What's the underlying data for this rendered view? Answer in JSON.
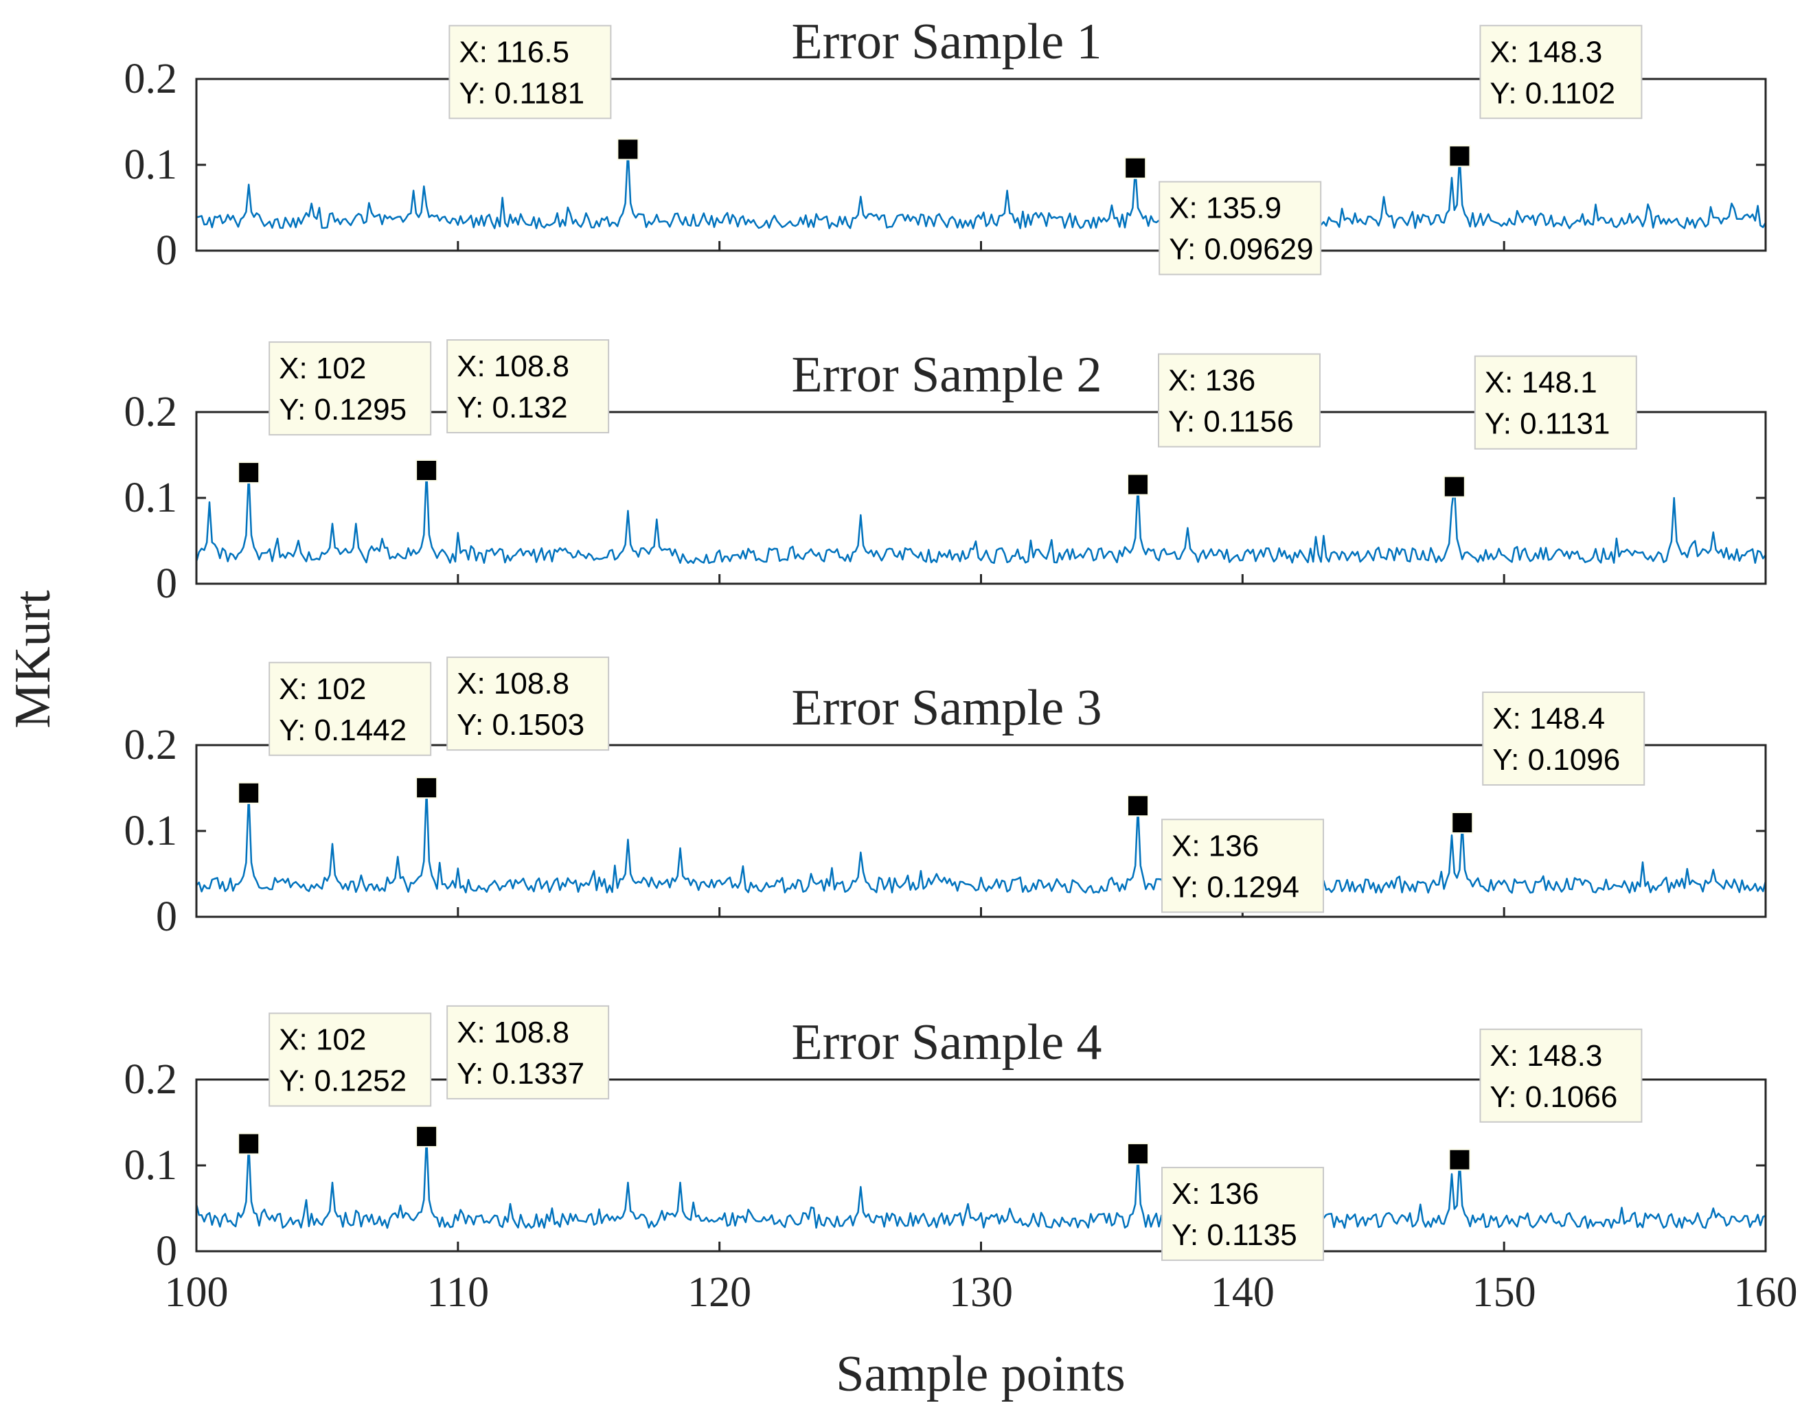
{
  "figure": {
    "ylabel": "MKurt",
    "xlabel": "Sample points",
    "line_color": "#0072bd",
    "marker_color": "#000000",
    "tooltip_fill": "#fcfce8"
  },
  "chart_data": [
    {
      "type": "line",
      "title": "Error Sample 1",
      "xlim": [
        100,
        160
      ],
      "ylim": [
        0,
        0.2
      ],
      "yticks": [
        0,
        0.1,
        0.2
      ],
      "ytick_labels": [
        "0",
        "0.1",
        "0.2"
      ],
      "baseline": 0.035,
      "peaks": [
        {
          "x": 102,
          "y": 0.077
        },
        {
          "x": 104.4,
          "y": 0.055
        },
        {
          "x": 108.3,
          "y": 0.07
        },
        {
          "x": 108.7,
          "y": 0.075
        },
        {
          "x": 116.5,
          "y": 0.1181
        },
        {
          "x": 125.4,
          "y": 0.063
        },
        {
          "x": 131,
          "y": 0.07
        },
        {
          "x": 135.9,
          "y": 0.09629
        },
        {
          "x": 148,
          "y": 0.085
        },
        {
          "x": 148.3,
          "y": 0.1102
        },
        {
          "x": 158.7,
          "y": 0.055
        }
      ],
      "datatips": [
        {
          "x": 116.5,
          "y": 0.1181,
          "label_x": "X: 116.5",
          "label_y": "Y: 0.1181",
          "position": "above-left"
        },
        {
          "x": 135.9,
          "y": 0.09629,
          "label_x": "X: 135.9",
          "label_y": "Y: 0.09629",
          "position": "below-right"
        },
        {
          "x": 148.3,
          "y": 0.1102,
          "label_x": "X: 148.3",
          "label_y": "Y: 0.1102",
          "position": "above-right"
        }
      ]
    },
    {
      "type": "line",
      "title": "Error Sample 2",
      "xlim": [
        100,
        160
      ],
      "ylim": [
        0,
        0.2
      ],
      "yticks": [
        0,
        0.1,
        0.2
      ],
      "ytick_labels": [
        "0",
        "0.1",
        "0.2"
      ],
      "baseline": 0.033,
      "peaks": [
        {
          "x": 100.5,
          "y": 0.095
        },
        {
          "x": 102,
          "y": 0.1295
        },
        {
          "x": 105.2,
          "y": 0.07
        },
        {
          "x": 106.1,
          "y": 0.07
        },
        {
          "x": 108.8,
          "y": 0.132
        },
        {
          "x": 116.5,
          "y": 0.085
        },
        {
          "x": 117.6,
          "y": 0.075
        },
        {
          "x": 125.4,
          "y": 0.08
        },
        {
          "x": 136,
          "y": 0.1156
        },
        {
          "x": 137.9,
          "y": 0.065
        },
        {
          "x": 148,
          "y": 0.09
        },
        {
          "x": 148.1,
          "y": 0.1131
        },
        {
          "x": 156.5,
          "y": 0.1
        },
        {
          "x": 158,
          "y": 0.06
        }
      ],
      "datatips": [
        {
          "x": 102,
          "y": 0.1295,
          "label_x": "X: 102",
          "label_y": "Y: 0.1295",
          "position": "above-right"
        },
        {
          "x": 108.8,
          "y": 0.132,
          "label_x": "X: 108.8",
          "label_y": "Y: 0.132",
          "position": "above-right"
        },
        {
          "x": 136,
          "y": 0.1156,
          "label_x": "X: 136",
          "label_y": "Y: 0.1156",
          "position": "above-right"
        },
        {
          "x": 148.1,
          "y": 0.1131,
          "label_x": "X: 148.1",
          "label_y": "Y: 0.1131",
          "position": "above-right"
        }
      ]
    },
    {
      "type": "line",
      "title": "Error Sample 3",
      "xlim": [
        100,
        160
      ],
      "ylim": [
        0,
        0.2
      ],
      "yticks": [
        0,
        0.1,
        0.2
      ],
      "ytick_labels": [
        "0",
        "0.1",
        "0.2"
      ],
      "baseline": 0.037,
      "peaks": [
        {
          "x": 102,
          "y": 0.1442
        },
        {
          "x": 105.2,
          "y": 0.085
        },
        {
          "x": 107.7,
          "y": 0.07
        },
        {
          "x": 108.8,
          "y": 0.1503
        },
        {
          "x": 116.5,
          "y": 0.09
        },
        {
          "x": 118.5,
          "y": 0.08
        },
        {
          "x": 125.4,
          "y": 0.075
        },
        {
          "x": 136,
          "y": 0.1294
        },
        {
          "x": 148,
          "y": 0.095
        },
        {
          "x": 148.4,
          "y": 0.1096
        },
        {
          "x": 158,
          "y": 0.055
        }
      ],
      "datatips": [
        {
          "x": 102,
          "y": 0.1442,
          "label_x": "X: 102",
          "label_y": "Y: 0.1442",
          "position": "above-right"
        },
        {
          "x": 108.8,
          "y": 0.1503,
          "label_x": "X: 108.8",
          "label_y": "Y: 0.1503",
          "position": "above-right"
        },
        {
          "x": 136,
          "y": 0.1294,
          "label_x": "X: 136",
          "label_y": "Y: 0.1294",
          "position": "below-right"
        },
        {
          "x": 148.4,
          "y": 0.1096,
          "label_x": "X: 148.4",
          "label_y": "Y: 0.1096",
          "position": "above-right"
        }
      ]
    },
    {
      "type": "line",
      "title": "Error Sample 4",
      "xlim": [
        100,
        160
      ],
      "ylim": [
        0,
        0.2
      ],
      "yticks": [
        0,
        0.1,
        0.2
      ],
      "ytick_labels": [
        "0",
        "0.1",
        "0.2"
      ],
      "xticks": [
        100,
        110,
        120,
        130,
        140,
        150,
        160
      ],
      "xtick_labels": [
        "100",
        "110",
        "120",
        "130",
        "140",
        "150",
        "160"
      ],
      "baseline": 0.036,
      "peaks": [
        {
          "x": 102,
          "y": 0.1252
        },
        {
          "x": 105.2,
          "y": 0.08
        },
        {
          "x": 108.8,
          "y": 0.1337
        },
        {
          "x": 116.5,
          "y": 0.08
        },
        {
          "x": 118.5,
          "y": 0.08
        },
        {
          "x": 125.4,
          "y": 0.075
        },
        {
          "x": 136,
          "y": 0.1135
        },
        {
          "x": 148,
          "y": 0.09
        },
        {
          "x": 148.3,
          "y": 0.1066
        },
        {
          "x": 158,
          "y": 0.05
        }
      ],
      "datatips": [
        {
          "x": 102,
          "y": 0.1252,
          "label_x": "X: 102",
          "label_y": "Y: 0.1252",
          "position": "above-right"
        },
        {
          "x": 108.8,
          "y": 0.1337,
          "label_x": "X: 108.8",
          "label_y": "Y: 0.1337",
          "position": "above-right"
        },
        {
          "x": 136,
          "y": 0.1135,
          "label_x": "X: 136",
          "label_y": "Y: 0.1135",
          "position": "below-right"
        },
        {
          "x": 148.3,
          "y": 0.1066,
          "label_x": "X: 148.3",
          "label_y": "Y: 0.1066",
          "position": "above-right"
        }
      ]
    }
  ]
}
